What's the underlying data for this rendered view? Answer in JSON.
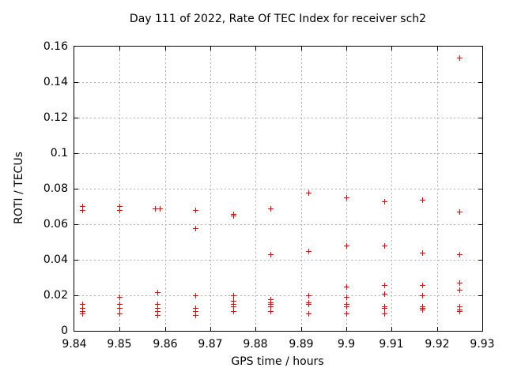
{
  "chart_data": {
    "type": "scatter",
    "title": "Day 111 of 2022, Rate Of TEC Index for receiver sch2",
    "xlabel": "GPS time / hours",
    "ylabel": "ROTI / TECUs",
    "xlim": [
      9.84,
      9.93
    ],
    "ylim": [
      0,
      0.16
    ],
    "x_ticks": [
      9.84,
      9.85,
      9.86,
      9.87,
      9.88,
      9.89,
      9.9,
      9.91,
      9.92,
      9.93
    ],
    "x_tick_labels": [
      "9.84",
      "9.85",
      "9.86",
      "9.87",
      "9.88",
      "9.89",
      "9.9",
      "9.91",
      "9.92",
      "9.93"
    ],
    "y_ticks": [
      0,
      0.02,
      0.04,
      0.06,
      0.08,
      0.1,
      0.12,
      0.14,
      0.16
    ],
    "y_tick_labels": [
      "0",
      "0.02",
      "0.04",
      "0.06",
      "0.08",
      "0.1",
      "0.12",
      "0.14",
      "0.16"
    ],
    "grid": true,
    "legend": "none",
    "marker": "plus",
    "marker_color": "#ff0000",
    "grid_color": "#b0b0b0",
    "border_color": "#000000",
    "background_color": "#ffffff",
    "series": [
      {
        "name": "ROTI",
        "points": [
          [
            9.8417,
            0.07
          ],
          [
            9.8417,
            0.068
          ],
          [
            9.8417,
            0.015
          ],
          [
            9.8417,
            0.013
          ],
          [
            9.8417,
            0.011
          ],
          [
            9.8417,
            0.01
          ],
          [
            9.85,
            0.07
          ],
          [
            9.85,
            0.068
          ],
          [
            9.85,
            0.019
          ],
          [
            9.85,
            0.015
          ],
          [
            9.85,
            0.013
          ],
          [
            9.85,
            0.01
          ],
          [
            9.8578,
            0.069
          ],
          [
            9.8589,
            0.069
          ],
          [
            9.8583,
            0.022
          ],
          [
            9.8583,
            0.015
          ],
          [
            9.8583,
            0.013
          ],
          [
            9.8583,
            0.011
          ],
          [
            9.8583,
            0.009
          ],
          [
            9.8667,
            0.068
          ],
          [
            9.8667,
            0.058
          ],
          [
            9.8667,
            0.02
          ],
          [
            9.8667,
            0.013
          ],
          [
            9.8667,
            0.011
          ],
          [
            9.8667,
            0.009
          ],
          [
            9.875,
            0.066
          ],
          [
            9.875,
            0.065
          ],
          [
            9.875,
            0.02
          ],
          [
            9.875,
            0.017
          ],
          [
            9.875,
            0.015
          ],
          [
            9.875,
            0.014
          ],
          [
            9.875,
            0.011
          ],
          [
            9.8833,
            0.069
          ],
          [
            9.8833,
            0.043
          ],
          [
            9.8833,
            0.018
          ],
          [
            9.8833,
            0.016
          ],
          [
            9.8833,
            0.015
          ],
          [
            9.8833,
            0.014
          ],
          [
            9.8833,
            0.011
          ],
          [
            9.8917,
            0.078
          ],
          [
            9.8917,
            0.045
          ],
          [
            9.8917,
            0.02
          ],
          [
            9.8917,
            0.016
          ],
          [
            9.8917,
            0.015
          ],
          [
            9.8917,
            0.01
          ],
          [
            9.9,
            0.075
          ],
          [
            9.9,
            0.048
          ],
          [
            9.9,
            0.025
          ],
          [
            9.9,
            0.019
          ],
          [
            9.9,
            0.015
          ],
          [
            9.9,
            0.014
          ],
          [
            9.9,
            0.01
          ],
          [
            9.9083,
            0.073
          ],
          [
            9.9083,
            0.048
          ],
          [
            9.9083,
            0.026
          ],
          [
            9.9083,
            0.021
          ],
          [
            9.9083,
            0.014
          ],
          [
            9.9083,
            0.013
          ],
          [
            9.9083,
            0.01
          ],
          [
            9.9167,
            0.074
          ],
          [
            9.9167,
            0.044
          ],
          [
            9.9167,
            0.026
          ],
          [
            9.9167,
            0.02
          ],
          [
            9.9167,
            0.014
          ],
          [
            9.9167,
            0.013
          ],
          [
            9.9167,
            0.012
          ],
          [
            9.925,
            0.154
          ],
          [
            9.925,
            0.067
          ],
          [
            9.925,
            0.043
          ],
          [
            9.925,
            0.027
          ],
          [
            9.925,
            0.023
          ],
          [
            9.925,
            0.014
          ],
          [
            9.925,
            0.012
          ],
          [
            9.925,
            0.011
          ]
        ]
      }
    ]
  }
}
